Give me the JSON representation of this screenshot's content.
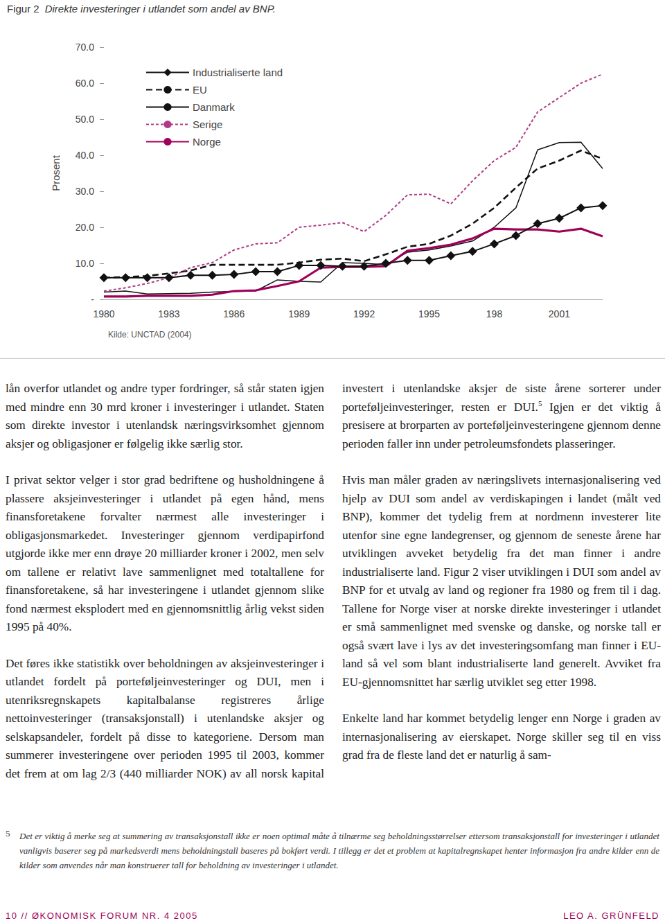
{
  "figure_label": "Figur 2",
  "chart_data": {
    "type": "line",
    "title": "Direkte investeringer i utlandet som andel av BNP.",
    "y_label": "Prosent",
    "categories": [
      "1980",
      null,
      null,
      "1983",
      null,
      null,
      "1986",
      null,
      null,
      "1989",
      null,
      null,
      "1992",
      null,
      null,
      "1995",
      null,
      null,
      "198",
      null,
      null,
      "2001",
      null,
      null
    ],
    "ylim": [
      0,
      70
    ],
    "yticks": [
      {
        "value": 0,
        "label": "-"
      },
      {
        "value": 10,
        "label": "10.0"
      },
      {
        "value": 20,
        "label": "20.0"
      },
      {
        "value": 30,
        "label": "30.0"
      },
      {
        "value": 40,
        "label": "40.0"
      },
      {
        "value": 50,
        "label": "50.0"
      },
      {
        "value": 60,
        "label": "60.0"
      },
      {
        "value": 70,
        "label": "70.0"
      }
    ],
    "grid": false,
    "legend": "upper left",
    "series": [
      {
        "name": "Industrialiserte land",
        "color": "#111111",
        "marker": "diamond",
        "line_style": "solid",
        "values": [
          6.0,
          6.0,
          6.0,
          6.0,
          6.7,
          6.7,
          6.9,
          7.7,
          7.7,
          9.4,
          9.4,
          9.2,
          9.2,
          10.0,
          10.8,
          10.8,
          12.1,
          13.3,
          15.4,
          17.7,
          21.0,
          22.5,
          25.4,
          26.0
        ]
      },
      {
        "name": "EU",
        "color": "#111111",
        "line_style": "dashed",
        "values": [
          6.0,
          6.2,
          6.5,
          7.2,
          8.0,
          9.6,
          9.6,
          9.6,
          9.6,
          10.2,
          11.0,
          11.3,
          10.6,
          12.5,
          14.6,
          15.4,
          17.7,
          21.0,
          25.4,
          31.0,
          36.3,
          38.5,
          41.3,
          39.0
        ]
      },
      {
        "name": "Danmark",
        "color": "#111111",
        "line_style": "solid",
        "values": [
          2.0,
          2.3,
          1.5,
          1.6,
          1.7,
          2.0,
          2.2,
          2.3,
          5.4,
          5.0,
          4.8,
          10.2,
          10.0,
          9.6,
          13.1,
          13.7,
          14.8,
          16.2,
          20.0,
          25.4,
          41.5,
          43.5,
          43.6,
          36.3
        ]
      },
      {
        "name": "Serige",
        "color": "#b03a86",
        "line_style": "dotted",
        "values": [
          2.3,
          3.2,
          4.4,
          6.0,
          8.8,
          10.2,
          13.7,
          15.4,
          15.7,
          20.0,
          20.6,
          21.3,
          18.8,
          23.3,
          29.0,
          29.2,
          26.5,
          32.9,
          38.5,
          42.2,
          52.0,
          56.0,
          60.0,
          62.5
        ]
      },
      {
        "name": "Norge",
        "color": "#a0005a",
        "line_style": "solid",
        "values": [
          0.8,
          0.8,
          1.0,
          1.0,
          1.0,
          1.3,
          2.3,
          2.5,
          3.7,
          5.0,
          8.8,
          9.0,
          9.0,
          9.2,
          13.5,
          14.2,
          15.2,
          16.9,
          19.6,
          19.4,
          19.4,
          18.8,
          19.6,
          17.5
        ]
      }
    ],
    "source": "Kilde: UNCTAD (2004)"
  },
  "body": {
    "paragraphs": [
      [
        {
          "text": "lån overfor utlandet og andre typer fordringer, så står staten igjen med mindre enn 30 mrd kroner i investeringer i utlandet. Staten som direkte investor i utenlandsk næringsvirksomhet gjennom aksjer og obligasjoner er følgelig ikke særlig stor."
        }
      ],
      [
        {
          "text": "I privat sektor velger i stor grad bedriftene og husholdningene å plassere aksjeinvesteringer i utlandet på egen hånd, mens finansforetakene forvalter nærmest alle investeringer i obligasjonsmarkedet. Investeringer gjennom verdipapirfond utgjorde ikke mer enn drøye 20 milliarder kroner i 2002, men selv om tallene er relativt lave sammenlignet med totaltallene for finansforetakene, så har investeringene i utlandet gjennom slike fond nærmest eksplodert med en gjennomsnittlig årlig vekst siden 1995 på 40%."
        }
      ],
      [
        {
          "text": "Det føres ikke statistikk over beholdningen av aksjeinvesteringer i utlandet fordelt på porteføljeinvesteringer og DUI, men i utenriksregnskapets kapitalbalanse registreres årlige nettoinvesteringer (transaksjonstall) i utenlandske aksjer og selskapsandeler, fordelt på disse to kategoriene. Dersom man summerer investeringene over perioden 1995 til 2003, kommer det frem at om lag 2/3 (440 milliarder NOK) av all norsk kapital investert i utenlandske aksjer de siste årene sorterer under porteføljeinvesteringer, resten er DUI."
        },
        {
          "sup": "5"
        },
        {
          "text": " Igjen er det viktig å presisere at brorparten av porteføljeinvesteringene gjennom denne perioden faller inn under petroleumsfondets plasseringer."
        }
      ],
      [
        {
          "text": "Hvis man måler graden av næringslivets internasjonalisering ved hjelp av DUI som andel av verdiskapingen i landet (målt ved BNP), kommer det tydelig frem at nordmenn investerer lite utenfor sine egne landegrenser, og gjennom de seneste årene har utviklingen avveket betydelig fra det man finner i andre industrialiserte land. Figur 2 viser utviklingen i DUI som andel av BNP for et utvalg av land og regioner fra 1980 og frem til i dag. Tallene for Norge viser at norske direkte investeringer i utlandet er små sammenlignet med svenske og danske, og norske tall er også svært lave i lys av det investeringsomfang man finner i EU-land så vel som blant industrialiserte land generelt. Avviket fra EU-gjennomsnittet har særlig utviklet seg etter 1998."
        }
      ],
      [
        {
          "text": "Enkelte land har kommet betydelig lenger enn Norge i graden av internasjonalisering av eierskapet. Norge skiller seg til en viss grad fra de fleste land det er naturlig å sam-"
        }
      ]
    ]
  },
  "footnote": {
    "number": "5",
    "text": "Det er viktig å merke seg at summering av transaksjonstall ikke er noen optimal måte å tilnærme seg beholdningsstørrelser ettersom transaksjonstall for investeringer i utlandet vanligvis baserer seg på markedsverdi mens beholdningstall baseres på bokført verdi. I tillegg er det et problem at kapitalregnskapet henter informasjon fra andre kilder enn de kilder som anvendes når man konstruerer tall for beholdning av investeringer i utlandet."
  },
  "footer": {
    "left": "10 // ØKONOMISK FORUM NR. 4 2005",
    "right": "LEO A. GRÜNFELD"
  }
}
